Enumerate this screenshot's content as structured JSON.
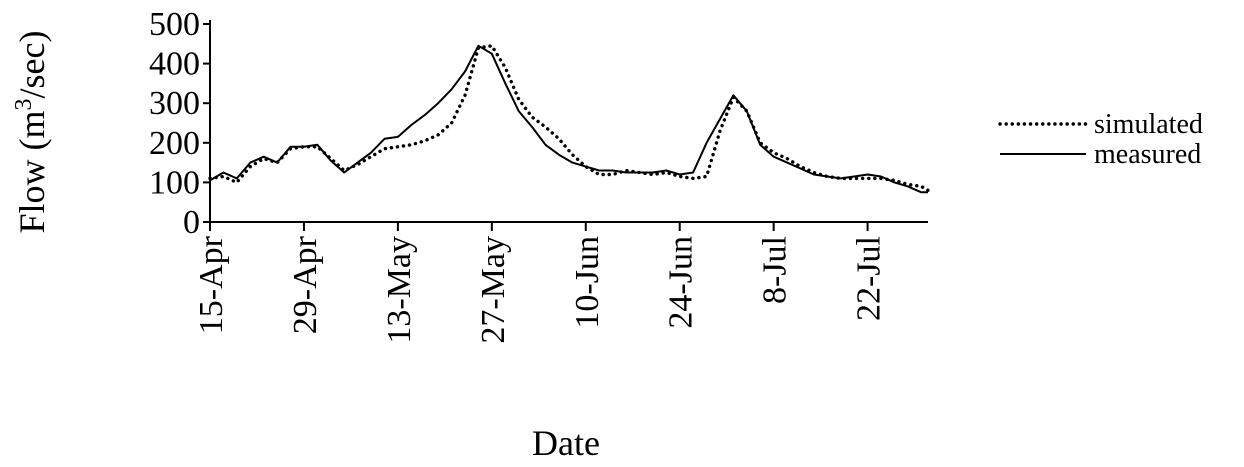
{
  "chart_data": {
    "type": "line",
    "xlabel": "Date",
    "ylabel": "Flow (m³/sec)",
    "ylim": [
      0,
      500
    ],
    "y_ticks": [
      0,
      100,
      200,
      300,
      400,
      500
    ],
    "x_domain": [
      "2000-04-15",
      "2000-07-31"
    ],
    "x_ticks": [
      {
        "date": "2000-04-15",
        "label": "15-Apr"
      },
      {
        "date": "2000-04-29",
        "label": "29-Apr"
      },
      {
        "date": "2000-05-13",
        "label": "13-May"
      },
      {
        "date": "2000-05-27",
        "label": "27-May"
      },
      {
        "date": "2000-06-10",
        "label": "10-Jun"
      },
      {
        "date": "2000-06-24",
        "label": "24-Jun"
      },
      {
        "date": "2000-07-08",
        "label": "8-Jul"
      },
      {
        "date": "2000-07-22",
        "label": "22-Jul"
      }
    ],
    "grid": false,
    "legend_position": "right",
    "series": [
      {
        "name": "simulated",
        "style": "dotted",
        "color": "#000000",
        "points": [
          [
            "2000-04-15",
            110
          ],
          [
            "2000-04-17",
            115
          ],
          [
            "2000-04-19",
            100
          ],
          [
            "2000-04-21",
            140
          ],
          [
            "2000-04-23",
            160
          ],
          [
            "2000-04-25",
            150
          ],
          [
            "2000-04-27",
            185
          ],
          [
            "2000-04-29",
            190
          ],
          [
            "2000-05-01",
            190
          ],
          [
            "2000-05-03",
            160
          ],
          [
            "2000-05-05",
            130
          ],
          [
            "2000-05-07",
            145
          ],
          [
            "2000-05-09",
            165
          ],
          [
            "2000-05-11",
            185
          ],
          [
            "2000-05-13",
            190
          ],
          [
            "2000-05-15",
            195
          ],
          [
            "2000-05-17",
            205
          ],
          [
            "2000-05-19",
            220
          ],
          [
            "2000-05-21",
            250
          ],
          [
            "2000-05-23",
            320
          ],
          [
            "2000-05-25",
            440
          ],
          [
            "2000-05-27",
            445
          ],
          [
            "2000-05-29",
            390
          ],
          [
            "2000-05-31",
            310
          ],
          [
            "2000-06-02",
            265
          ],
          [
            "2000-06-04",
            240
          ],
          [
            "2000-06-06",
            210
          ],
          [
            "2000-06-08",
            170
          ],
          [
            "2000-06-10",
            140
          ],
          [
            "2000-06-12",
            120
          ],
          [
            "2000-06-14",
            120
          ],
          [
            "2000-06-16",
            130
          ],
          [
            "2000-06-18",
            125
          ],
          [
            "2000-06-20",
            120
          ],
          [
            "2000-06-22",
            125
          ],
          [
            "2000-06-24",
            115
          ],
          [
            "2000-06-26",
            110
          ],
          [
            "2000-06-28",
            115
          ],
          [
            "2000-06-30",
            230
          ],
          [
            "2000-07-02",
            315
          ],
          [
            "2000-07-04",
            280
          ],
          [
            "2000-07-06",
            200
          ],
          [
            "2000-07-08",
            175
          ],
          [
            "2000-07-10",
            160
          ],
          [
            "2000-07-12",
            140
          ],
          [
            "2000-07-14",
            125
          ],
          [
            "2000-07-16",
            115
          ],
          [
            "2000-07-18",
            110
          ],
          [
            "2000-07-20",
            110
          ],
          [
            "2000-07-22",
            110
          ],
          [
            "2000-07-24",
            110
          ],
          [
            "2000-07-26",
            105
          ],
          [
            "2000-07-28",
            95
          ],
          [
            "2000-07-30",
            90
          ],
          [
            "2000-07-31",
            80
          ]
        ]
      },
      {
        "name": "measured",
        "style": "solid",
        "color": "#000000",
        "points": [
          [
            "2000-04-15",
            105
          ],
          [
            "2000-04-17",
            125
          ],
          [
            "2000-04-19",
            110
          ],
          [
            "2000-04-21",
            150
          ],
          [
            "2000-04-23",
            165
          ],
          [
            "2000-04-25",
            150
          ],
          [
            "2000-04-27",
            190
          ],
          [
            "2000-04-29",
            190
          ],
          [
            "2000-05-01",
            195
          ],
          [
            "2000-05-03",
            155
          ],
          [
            "2000-05-05",
            125
          ],
          [
            "2000-05-07",
            150
          ],
          [
            "2000-05-09",
            175
          ],
          [
            "2000-05-11",
            210
          ],
          [
            "2000-05-13",
            215
          ],
          [
            "2000-05-15",
            245
          ],
          [
            "2000-05-17",
            270
          ],
          [
            "2000-05-19",
            300
          ],
          [
            "2000-05-21",
            335
          ],
          [
            "2000-05-23",
            380
          ],
          [
            "2000-05-25",
            445
          ],
          [
            "2000-05-27",
            425
          ],
          [
            "2000-05-29",
            350
          ],
          [
            "2000-05-31",
            280
          ],
          [
            "2000-06-02",
            240
          ],
          [
            "2000-06-04",
            195
          ],
          [
            "2000-06-06",
            170
          ],
          [
            "2000-06-08",
            150
          ],
          [
            "2000-06-10",
            140
          ],
          [
            "2000-06-12",
            130
          ],
          [
            "2000-06-14",
            130
          ],
          [
            "2000-06-16",
            125
          ],
          [
            "2000-06-18",
            125
          ],
          [
            "2000-06-20",
            125
          ],
          [
            "2000-06-22",
            130
          ],
          [
            "2000-06-24",
            120
          ],
          [
            "2000-06-26",
            125
          ],
          [
            "2000-06-28",
            200
          ],
          [
            "2000-06-30",
            260
          ],
          [
            "2000-07-02",
            320
          ],
          [
            "2000-07-04",
            280
          ],
          [
            "2000-07-06",
            195
          ],
          [
            "2000-07-08",
            165
          ],
          [
            "2000-07-10",
            150
          ],
          [
            "2000-07-12",
            135
          ],
          [
            "2000-07-14",
            120
          ],
          [
            "2000-07-16",
            115
          ],
          [
            "2000-07-18",
            110
          ],
          [
            "2000-07-20",
            115
          ],
          [
            "2000-07-22",
            120
          ],
          [
            "2000-07-24",
            115
          ],
          [
            "2000-07-26",
            100
          ],
          [
            "2000-07-28",
            90
          ],
          [
            "2000-07-30",
            75
          ],
          [
            "2000-07-31",
            75
          ]
        ]
      }
    ]
  }
}
